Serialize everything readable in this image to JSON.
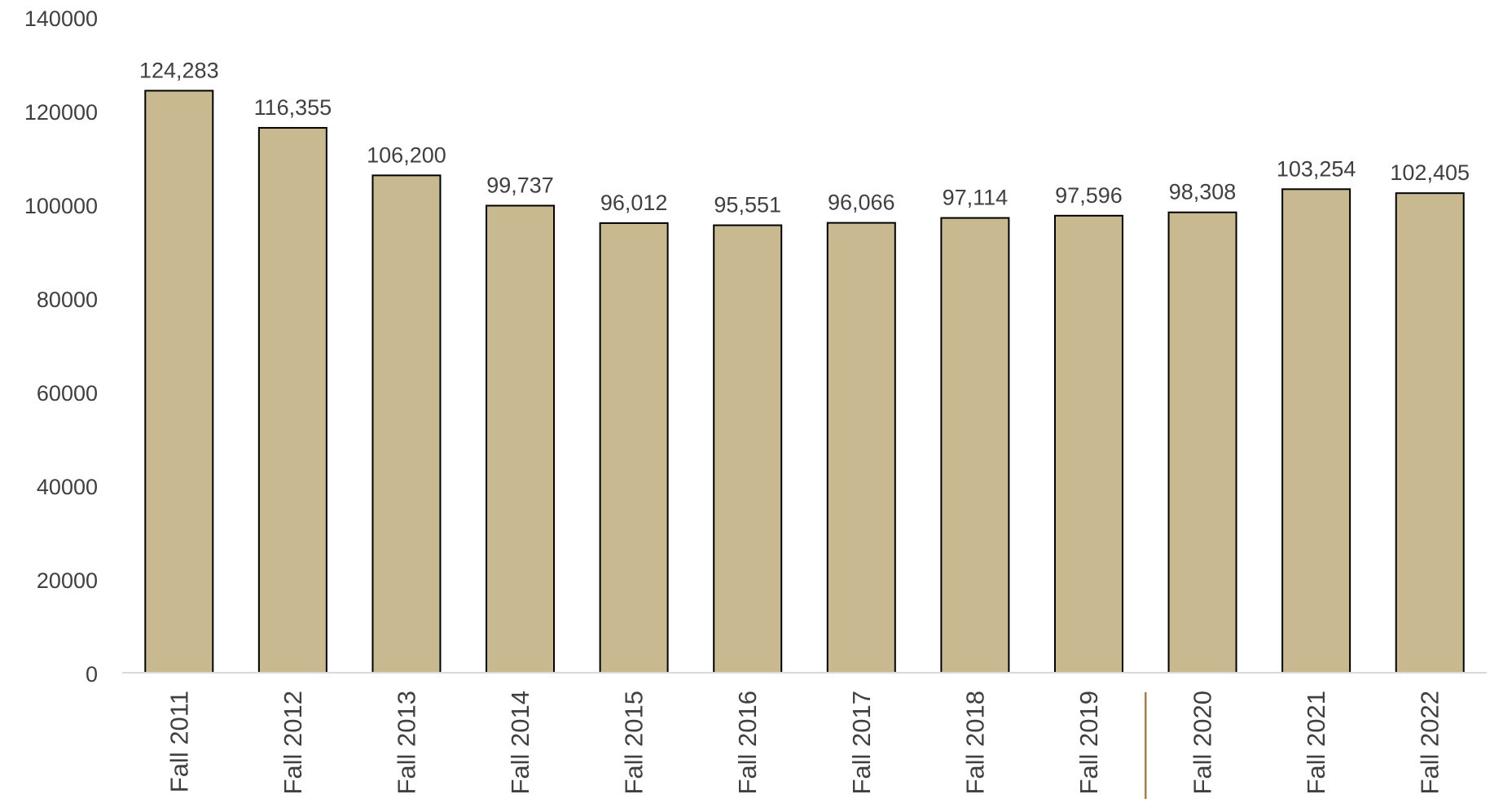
{
  "chart_data": {
    "type": "bar",
    "title": "",
    "xlabel": "",
    "ylabel": "",
    "categories": [
      "Fall 2011",
      "Fall 2012",
      "Fall 2013",
      "Fall 2014",
      "Fall 2015",
      "Fall 2016",
      "Fall 2017",
      "Fall 2018",
      "Fall 2019",
      "Fall 2020",
      "Fall 2021",
      "Fall 2022"
    ],
    "values": [
      124283,
      116355,
      106200,
      99737,
      96012,
      95551,
      96066,
      97114,
      97596,
      98308,
      103254,
      102405
    ],
    "data_labels": [
      "124,283",
      "116,355",
      "106,200",
      "99,737",
      "96,012",
      "95,551",
      "96,066",
      "97,114",
      "97,596",
      "98,308",
      "103,254",
      "102,405"
    ],
    "ylim": [
      0,
      140000
    ],
    "yticks": [
      0,
      20000,
      40000,
      60000,
      80000,
      100000,
      120000,
      140000
    ],
    "ytick_labels": [
      "0",
      "20000",
      "40000",
      "60000",
      "80000",
      "100000",
      "120000",
      "140000"
    ],
    "grid": false,
    "legend": "none",
    "divider_between": [
      "Fall 2019",
      "Fall 2020"
    ],
    "colors": {
      "bar_fill": "#c9b991",
      "bar_stroke": "#000000",
      "axis": "#d9d9d9",
      "text": "#404040",
      "divider": "#a0804a"
    }
  }
}
